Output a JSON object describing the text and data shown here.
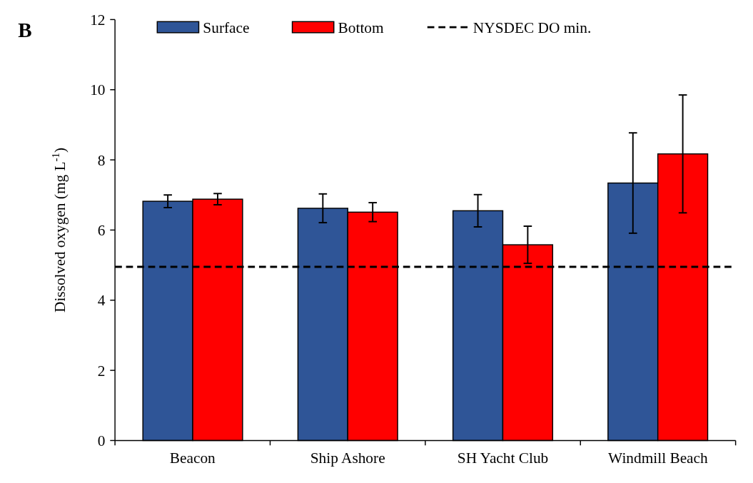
{
  "chart_data": {
    "type": "bar",
    "title": "B",
    "ylabel": "Dissolved oxygen (mg L$^{-1}$)",
    "categories": [
      "Beacon",
      "Ship Ashore",
      "SH Yacht Club",
      "Windmill Beach"
    ],
    "series": [
      {
        "name": "Surface",
        "color": "#2f5597",
        "values": [
          6.82,
          6.62,
          6.55,
          7.34
        ],
        "errors": [
          0.18,
          0.41,
          0.46,
          1.43
        ]
      },
      {
        "name": "Bottom",
        "color": "#ff0000",
        "values": [
          6.88,
          6.51,
          5.58,
          8.17
        ],
        "errors": [
          0.16,
          0.27,
          0.53,
          1.68
        ]
      }
    ],
    "ylim": [
      0,
      12
    ],
    "yticks": [
      0,
      2,
      4,
      6,
      8,
      10,
      12
    ],
    "grid": false,
    "legend": "top",
    "ref_lines": [
      {
        "axis": "y",
        "value": 4.95,
        "label": "NYSDEC DO min.",
        "color": "#000000",
        "line_style": "dashed"
      }
    ]
  }
}
